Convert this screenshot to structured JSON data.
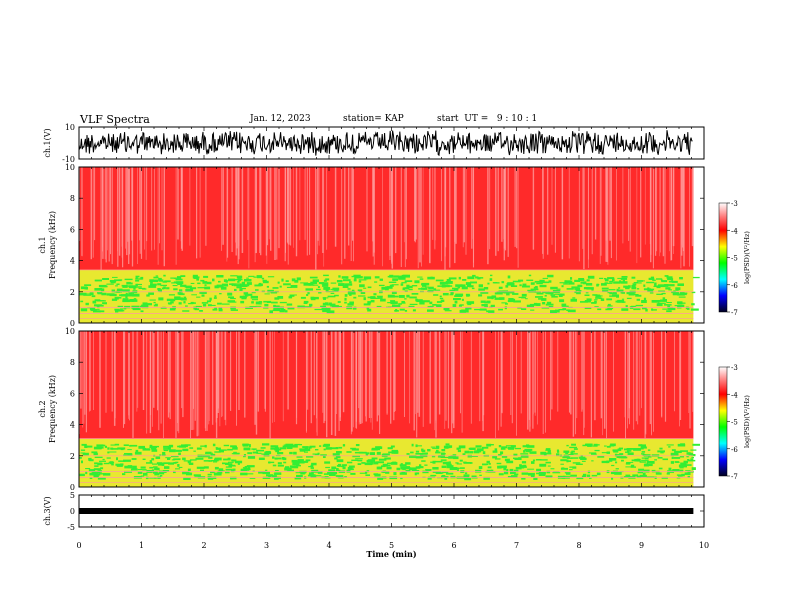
{
  "header": {
    "title": "VLF Spectra",
    "date": "Jan. 12, 2023",
    "station": "station= KAP",
    "start": "start  UT =   9 : 10 : 1"
  },
  "chart_data": [
    {
      "type": "line",
      "ylabel": "ch.1(V)",
      "ylim": [
        -10,
        10
      ],
      "yticks": [
        "10",
        "-10"
      ],
      "xlim": [
        0,
        10
      ]
    },
    {
      "type": "heatmap",
      "ylabel_line1": "ch.1",
      "ylabel_line2": "Frequency (kHz)",
      "ylim": [
        0,
        10
      ],
      "yticks": [
        "0",
        "2",
        "4",
        "6",
        "8",
        "10"
      ],
      "xlim": [
        0,
        10
      ],
      "data_end_x": 9.83,
      "bands": [
        {
          "from_khz": 0.0,
          "to_khz": 0.8,
          "level": "mixed"
        },
        {
          "from_khz": 0.8,
          "to_khz": 3.4,
          "level": "green-yellow"
        },
        {
          "from_khz": 3.4,
          "to_khz": 10.0,
          "level": "red"
        }
      ],
      "colorbar": {
        "label": "log(PSD)(V²/Hz)",
        "range": [
          -7,
          -3
        ],
        "ticks": [
          "-3",
          "-4",
          "-5",
          "-6",
          "-7"
        ]
      }
    },
    {
      "type": "heatmap",
      "ylabel_line1": "ch.2",
      "ylabel_line2": "Frequency (kHz)",
      "ylim": [
        0,
        10
      ],
      "yticks": [
        "0",
        "2",
        "4",
        "6",
        "8",
        "10"
      ],
      "xlim": [
        0,
        10
      ],
      "data_end_x": 9.83,
      "bands": [
        {
          "from_khz": 0.0,
          "to_khz": 0.6,
          "level": "mixed"
        },
        {
          "from_khz": 0.6,
          "to_khz": 3.1,
          "level": "green-yellow"
        },
        {
          "from_khz": 3.1,
          "to_khz": 10.0,
          "level": "red"
        }
      ],
      "colorbar": {
        "label": "log(PSD)(V²/Hz)",
        "range": [
          -7,
          -3
        ],
        "ticks": [
          "-3",
          "-4",
          "-5",
          "-6",
          "-7"
        ]
      }
    },
    {
      "type": "line",
      "ylabel": "ch.3(V)",
      "ylim": [
        -5,
        5
      ],
      "yticks": [
        "5",
        "0",
        "-5"
      ],
      "xlim": [
        0,
        10
      ],
      "xticks": [
        "0",
        "1",
        "2",
        "3",
        "4",
        "5",
        "6",
        "7",
        "8",
        "9",
        "10"
      ],
      "xlabel": "Time (min)"
    }
  ],
  "colors": {
    "red": "#ff2a2a",
    "light_red": "#ff9a9a",
    "yellow": "#e8e830",
    "green": "#33ee33",
    "line": "#000000"
  }
}
